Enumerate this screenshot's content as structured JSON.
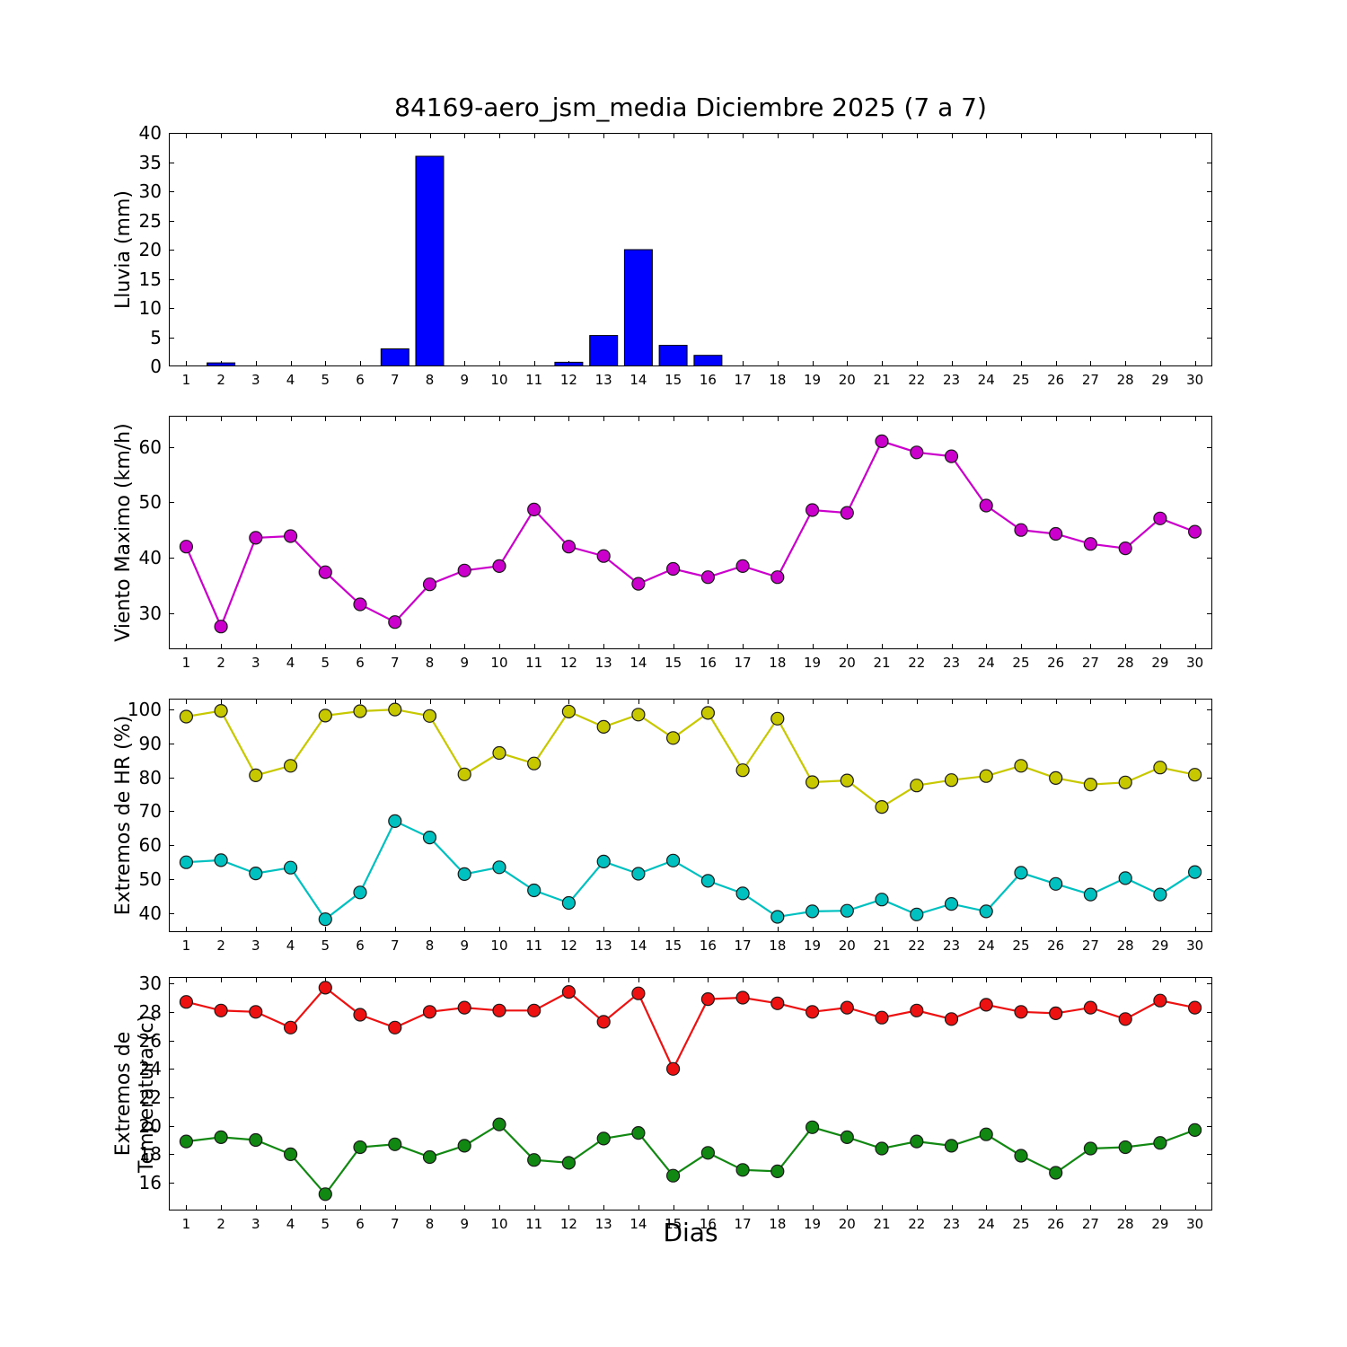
{
  "title": "84169-aero_jsm_media Diciembre 2025  (7 a 7)",
  "xlabel": "Dias",
  "chart_data": [
    {
      "type": "bar",
      "name": "lluvia",
      "ylabel": "Lluvia (mm)",
      "color": "#0000ff",
      "x": [
        1,
        2,
        3,
        4,
        5,
        6,
        7,
        8,
        9,
        10,
        11,
        12,
        13,
        14,
        15,
        16,
        17,
        18,
        19,
        20,
        21,
        22,
        23,
        24,
        25,
        26,
        27,
        28,
        29,
        30
      ],
      "values": [
        0,
        0.6,
        0,
        0,
        0,
        0,
        3.0,
        36.0,
        0,
        0,
        0,
        0.7,
        5.3,
        20.0,
        3.6,
        1.9,
        0,
        0,
        0,
        0,
        0,
        0,
        0,
        0,
        0,
        0,
        0,
        0,
        0,
        0
      ],
      "xlim": [
        0.5,
        30.5
      ],
      "ylim": [
        0,
        40
      ],
      "yticks": [
        0,
        5,
        10,
        15,
        20,
        25,
        30,
        35,
        40
      ],
      "grid": false
    },
    {
      "type": "line",
      "name": "viento-maximo",
      "ylabel": "Viento Maximo (km/h)",
      "color": "#cc00cc",
      "x": [
        1,
        2,
        3,
        4,
        5,
        6,
        7,
        8,
        9,
        10,
        11,
        12,
        13,
        14,
        15,
        16,
        17,
        18,
        19,
        20,
        21,
        22,
        23,
        24,
        25,
        26,
        27,
        28,
        29,
        30
      ],
      "values": [
        42.0,
        27.6,
        43.6,
        43.9,
        37.4,
        31.6,
        28.4,
        35.2,
        37.7,
        38.5,
        48.7,
        42.0,
        40.3,
        35.3,
        38.0,
        36.5,
        38.5,
        36.5,
        48.6,
        48.1,
        61.0,
        59.0,
        58.3,
        49.4,
        45.0,
        44.3,
        42.5,
        41.7,
        47.1,
        44.7
      ],
      "xlim": [
        0.5,
        30.5
      ],
      "ylim": [
        23.5,
        65.6
      ],
      "yticks": [
        30,
        40,
        50,
        60
      ],
      "grid": false
    },
    {
      "type": "line",
      "name": "extremos-hr",
      "ylabel": "Extremos de HR (%)",
      "x": [
        1,
        2,
        3,
        4,
        5,
        6,
        7,
        8,
        9,
        10,
        11,
        12,
        13,
        14,
        15,
        16,
        17,
        18,
        19,
        20,
        21,
        22,
        23,
        24,
        25,
        26,
        27,
        28,
        29,
        30
      ],
      "series": [
        {
          "name": "hr-max",
          "color": "#c8c800",
          "values": [
            97.9,
            99.6,
            80.6,
            83.4,
            98.2,
            99.5,
            100.0,
            98.1,
            80.9,
            87.2,
            84.1,
            99.4,
            94.9,
            98.5,
            91.6,
            99.0,
            82.1,
            97.3,
            78.6,
            79.1,
            71.3,
            77.6,
            79.2,
            80.4,
            83.4,
            79.8,
            77.9,
            78.5,
            82.9,
            80.8
          ]
        },
        {
          "name": "hr-min",
          "color": "#00c0c0",
          "values": [
            55.0,
            55.6,
            51.7,
            53.4,
            38.2,
            46.1,
            67.1,
            62.3,
            51.5,
            53.5,
            46.7,
            43.0,
            55.2,
            51.6,
            55.5,
            49.5,
            45.8,
            38.9,
            40.5,
            40.7,
            44.0,
            39.6,
            42.7,
            40.5,
            51.9,
            48.6,
            45.5,
            50.3,
            45.5,
            52.1
          ]
        }
      ],
      "xlim": [
        0.5,
        30.5
      ],
      "ylim": [
        34.4,
        103.2
      ],
      "yticks": [
        40,
        50,
        60,
        70,
        80,
        90,
        100
      ],
      "grid": false
    },
    {
      "type": "line",
      "name": "extremos-temperatura",
      "ylabel": "Extremos de Temperatura (c)",
      "x": [
        1,
        2,
        3,
        4,
        5,
        6,
        7,
        8,
        9,
        10,
        11,
        12,
        13,
        14,
        15,
        16,
        17,
        18,
        19,
        20,
        21,
        22,
        23,
        24,
        25,
        26,
        27,
        28,
        29,
        30
      ],
      "series": [
        {
          "name": "temp-max",
          "color": "#ee1111",
          "values": [
            28.7,
            28.1,
            28.0,
            26.9,
            29.7,
            27.8,
            26.9,
            28.0,
            28.3,
            28.1,
            28.1,
            29.4,
            27.3,
            29.3,
            24.0,
            28.9,
            29.0,
            28.6,
            28.0,
            28.3,
            27.6,
            28.1,
            27.5,
            28.5,
            28.0,
            27.9,
            28.3,
            27.5,
            28.8,
            28.3
          ]
        },
        {
          "name": "temp-min",
          "color": "#118811",
          "values": [
            18.9,
            19.2,
            19.0,
            18.0,
            15.2,
            18.5,
            18.7,
            17.8,
            18.6,
            20.1,
            17.6,
            17.4,
            19.1,
            19.5,
            16.5,
            18.1,
            16.9,
            16.8,
            19.9,
            19.2,
            18.4,
            18.9,
            18.6,
            19.4,
            17.9,
            16.7,
            18.4,
            18.5,
            18.8,
            19.7
          ]
        }
      ],
      "xlim": [
        0.5,
        30.5
      ],
      "ylim": [
        14.05,
        30.45
      ],
      "yticks": [
        16,
        18,
        20,
        22,
        24,
        26,
        28,
        30
      ],
      "grid": false
    }
  ]
}
